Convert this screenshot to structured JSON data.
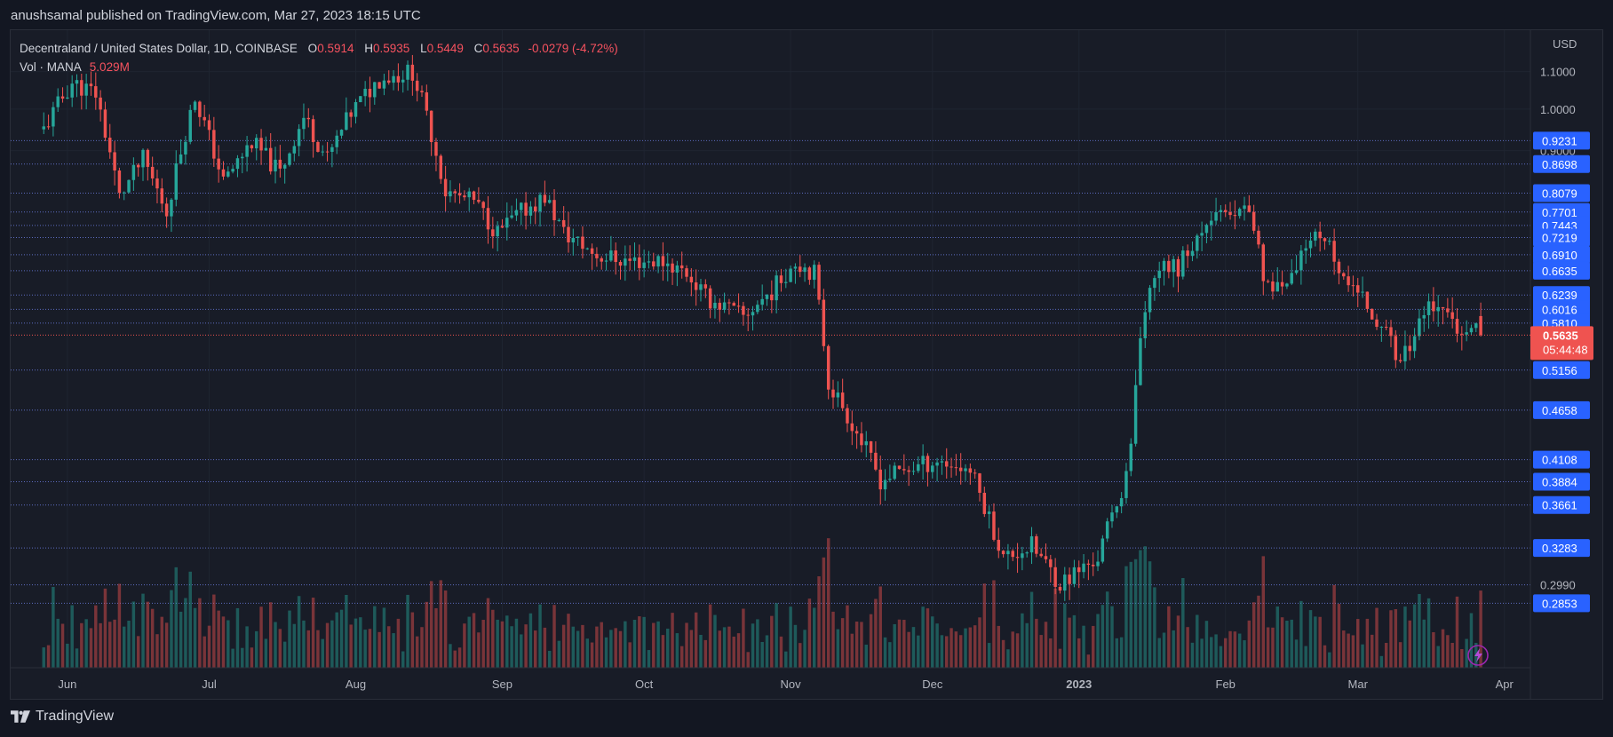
{
  "header": {
    "publisher_line": "anushsamal published on TradingView.com, Mar 27, 2023 18:15 UTC"
  },
  "legend": {
    "symbol": "Decentraland / United States Dollar, 1D, COINBASE",
    "open_label": "O",
    "open": "0.5914",
    "high_label": "H",
    "high": "0.5935",
    "low_label": "L",
    "low": "0.5449",
    "close_label": "C",
    "close": "0.5635",
    "change": "-0.0279 (-4.72%)",
    "vol_label": "Vol · MANA",
    "vol_value": "5.029M"
  },
  "footer": {
    "brand": "TradingView"
  },
  "colors": {
    "up": "#26a69a",
    "down": "#ef5350",
    "bg": "#181c27",
    "level_box": "#2962ff",
    "level_line": "#5c6bc0"
  },
  "chart_data": {
    "type": "candlestick",
    "currency": "USD",
    "y_scale": "log",
    "ylim": [
      0.255,
      1.22
    ],
    "y_ticks": [
      "1.1000",
      "1.0000",
      "0.9000"
    ],
    "x_ticks": [
      "Jun",
      "Jul",
      "Aug",
      "Sep",
      "Oct",
      "Nov",
      "Dec",
      "2023",
      "Feb",
      "Mar",
      "Apr"
    ],
    "horizontal_levels": [
      "0.9231",
      "0.8698",
      "0.8079",
      "0.7701",
      "0.7443",
      "0.7219",
      "0.6910",
      "0.6635",
      "0.6239",
      "0.6016",
      "0.5810",
      "0.5156",
      "0.4658",
      "0.4108",
      "0.3884",
      "0.3661",
      "0.3283",
      "0.2853"
    ],
    "current_price": "0.5635",
    "countdown": "05:44:48",
    "partially_visible_labels": [
      "0.2990"
    ],
    "anchors": [
      [
        "2022-05-27",
        0.95
      ],
      [
        "2022-06-02",
        1.07
      ],
      [
        "2022-06-07",
        1.04
      ],
      [
        "2022-06-12",
        0.8
      ],
      [
        "2022-06-17",
        0.88
      ],
      [
        "2022-06-22",
        0.77
      ],
      [
        "2022-06-28",
        1.03
      ],
      [
        "2022-07-04",
        0.83
      ],
      [
        "2022-07-10",
        0.92
      ],
      [
        "2022-07-16",
        0.85
      ],
      [
        "2022-07-21",
        0.98
      ],
      [
        "2022-07-26",
        0.88
      ],
      [
        "2022-07-31",
        0.99
      ],
      [
        "2022-08-06",
        1.08
      ],
      [
        "2022-08-13",
        1.1
      ],
      [
        "2022-08-17",
        0.94
      ],
      [
        "2022-08-20",
        0.81
      ],
      [
        "2022-08-26",
        0.79
      ],
      [
        "2022-08-31",
        0.73
      ],
      [
        "2022-09-05",
        0.77
      ],
      [
        "2022-09-10",
        0.8
      ],
      [
        "2022-09-14",
        0.73
      ],
      [
        "2022-09-21",
        0.69
      ],
      [
        "2022-09-28",
        0.68
      ],
      [
        "2022-10-05",
        0.68
      ],
      [
        "2022-10-10",
        0.66
      ],
      [
        "2022-10-14",
        0.62
      ],
      [
        "2022-10-22",
        0.59
      ],
      [
        "2022-10-28",
        0.63
      ],
      [
        "2022-11-02",
        0.68
      ],
      [
        "2022-11-06",
        0.66
      ],
      [
        "2022-11-09",
        0.5
      ],
      [
        "2022-11-13",
        0.46
      ],
      [
        "2022-11-20",
        0.39
      ],
      [
        "2022-11-25",
        0.4
      ],
      [
        "2022-12-02",
        0.41
      ],
      [
        "2022-12-09",
        0.4
      ],
      [
        "2022-12-16",
        0.32
      ],
      [
        "2022-12-22",
        0.33
      ],
      [
        "2022-12-28",
        0.3
      ],
      [
        "2023-01-05",
        0.32
      ],
      [
        "2023-01-10",
        0.38
      ],
      [
        "2023-01-12",
        0.42
      ],
      [
        "2023-01-14",
        0.55
      ],
      [
        "2023-01-17",
        0.66
      ],
      [
        "2023-01-22",
        0.67
      ],
      [
        "2023-01-26",
        0.72
      ],
      [
        "2023-01-29",
        0.77
      ],
      [
        "2023-02-02",
        0.75
      ],
      [
        "2023-02-06",
        0.78
      ],
      [
        "2023-02-09",
        0.65
      ],
      [
        "2023-02-14",
        0.63
      ],
      [
        "2023-02-18",
        0.7
      ],
      [
        "2023-02-22",
        0.73
      ],
      [
        "2023-02-26",
        0.65
      ],
      [
        "2023-03-03",
        0.61
      ],
      [
        "2023-03-08",
        0.55
      ],
      [
        "2023-03-10",
        0.52
      ],
      [
        "2023-03-13",
        0.57
      ],
      [
        "2023-03-17",
        0.61
      ],
      [
        "2023-03-22",
        0.58
      ],
      [
        "2023-03-27",
        0.5635
      ]
    ]
  }
}
